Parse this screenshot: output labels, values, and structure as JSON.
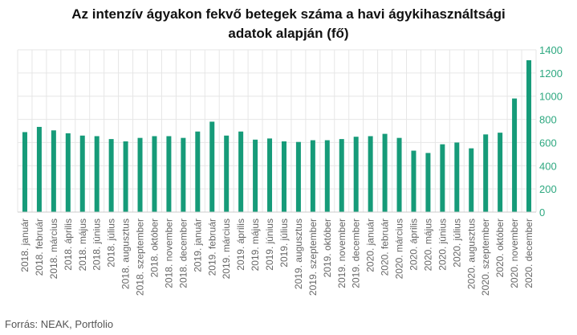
{
  "chart_data": {
    "type": "bar",
    "title_lines": [
      "Az intenzív ágyakon fekvő betegek száma a havi ágykihasználtsági",
      "adatok alapján (fő)"
    ],
    "source": "Forrás: NEAK, Portfolio",
    "bar_color": "#169b79",
    "grid": true,
    "y_axis_side": "right",
    "ylim": [
      0,
      1400
    ],
    "yticks": [
      0,
      200,
      400,
      600,
      800,
      1000,
      1200,
      1400
    ],
    "categories": [
      "2018. január",
      "2018. február",
      "2018. március",
      "2018. április",
      "2018. május",
      "2018. június",
      "2018. július",
      "2018. augusztus",
      "2018. szeptember",
      "2018. október",
      "2018. november",
      "2018. december",
      "2019. január",
      "2019. február",
      "2019. március",
      "2019. április",
      "2019. május",
      "2019. június",
      "2019. július",
      "2019. augusztus",
      "2019. szeptember",
      "2019. október",
      "2019. november",
      "2019. december",
      "2020. január",
      "2020. február",
      "2020. március",
      "2020. április",
      "2020. május",
      "2020. június",
      "2020. július",
      "2020. augusztus",
      "2020. szeptember",
      "2020. október",
      "2020. november",
      "2020. december"
    ],
    "values": [
      690,
      735,
      705,
      680,
      660,
      655,
      630,
      610,
      640,
      655,
      655,
      640,
      695,
      780,
      660,
      695,
      625,
      635,
      610,
      605,
      620,
      620,
      630,
      650,
      655,
      675,
      640,
      530,
      510,
      585,
      600,
      550,
      670,
      685,
      980,
      1310
    ]
  }
}
